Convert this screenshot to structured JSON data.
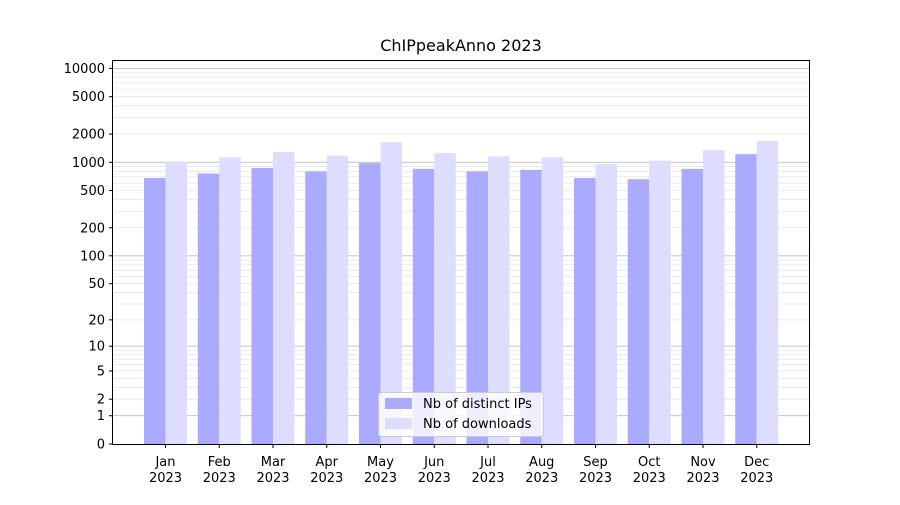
{
  "chart_data": {
    "type": "bar",
    "title": "ChIPpeakAnno 2023",
    "xlabel": "",
    "ylabel": "",
    "yscale": "log(1+y)",
    "ylim": [
      0,
      12000
    ],
    "y_ticks": [
      0,
      1,
      2,
      5,
      10,
      20,
      50,
      100,
      200,
      500,
      1000,
      2000,
      5000,
      10000
    ],
    "categories": [
      "Jan\n2023",
      "Feb\n2023",
      "Mar\n2023",
      "Apr\n2023",
      "May\n2023",
      "Jun\n2023",
      "Jul\n2023",
      "Aug\n2023",
      "Sep\n2023",
      "Oct\n2023",
      "Nov\n2023",
      "Dec\n2023"
    ],
    "series": [
      {
        "name": "Nb of distinct IPs",
        "color": "#aaaaff",
        "values": [
          680,
          760,
          870,
          800,
          980,
          850,
          800,
          830,
          680,
          660,
          850,
          1220
        ]
      },
      {
        "name": "Nb of downloads",
        "color": "#ddddff",
        "values": [
          1020,
          1130,
          1290,
          1180,
          1640,
          1250,
          1160,
          1130,
          960,
          1040,
          1350,
          1690
        ]
      }
    ],
    "grid": true,
    "legend_position": "lower center"
  }
}
